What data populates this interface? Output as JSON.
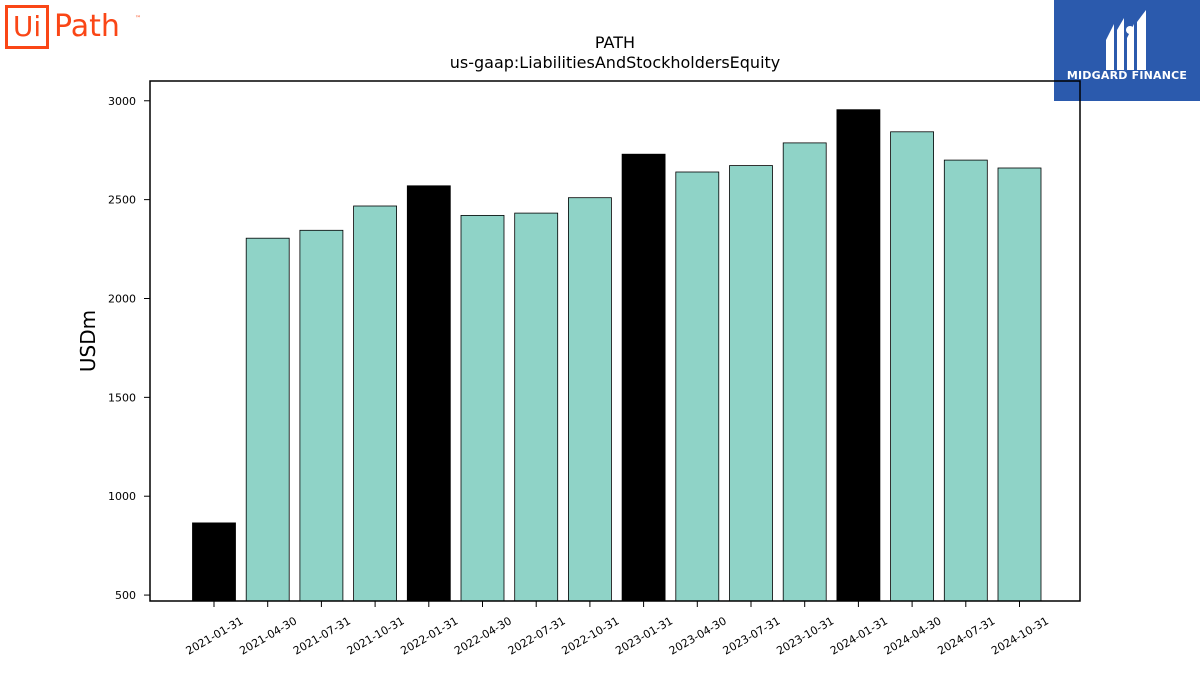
{
  "brand_logo": {
    "box_text": "Ui",
    "rest_text": "Path",
    "tm": "™"
  },
  "publisher_logo": {
    "text": "MIDGARD FINANCE"
  },
  "colors": {
    "highlight": "#000000",
    "default": "#8fd3c7",
    "brand": "#fa4616",
    "publisher": "#2b5aad"
  },
  "chart_data": {
    "type": "bar",
    "title": "PATH",
    "subtitle": "us-gaap:LiabilitiesAndStockholdersEquity",
    "xlabel": "",
    "ylabel": "USDm",
    "ylim": [
      470,
      3100
    ],
    "yticks": [
      500,
      1000,
      1500,
      2000,
      2500,
      3000
    ],
    "grid": false,
    "categories": [
      "2021-01-31",
      "2021-04-30",
      "2021-07-31",
      "2021-10-31",
      "2022-01-31",
      "2022-04-30",
      "2022-07-31",
      "2022-10-31",
      "2023-01-31",
      "2023-04-30",
      "2023-07-31",
      "2023-10-31",
      "2024-01-31",
      "2024-04-30",
      "2024-07-31",
      "2024-10-31"
    ],
    "values": [
      865,
      2305,
      2345,
      2468,
      2570,
      2420,
      2432,
      2510,
      2730,
      2640,
      2672,
      2787,
      2955,
      2843,
      2700,
      2660
    ],
    "highlighted": [
      true,
      false,
      false,
      false,
      true,
      false,
      false,
      false,
      true,
      false,
      false,
      false,
      true,
      false,
      false,
      false
    ]
  }
}
